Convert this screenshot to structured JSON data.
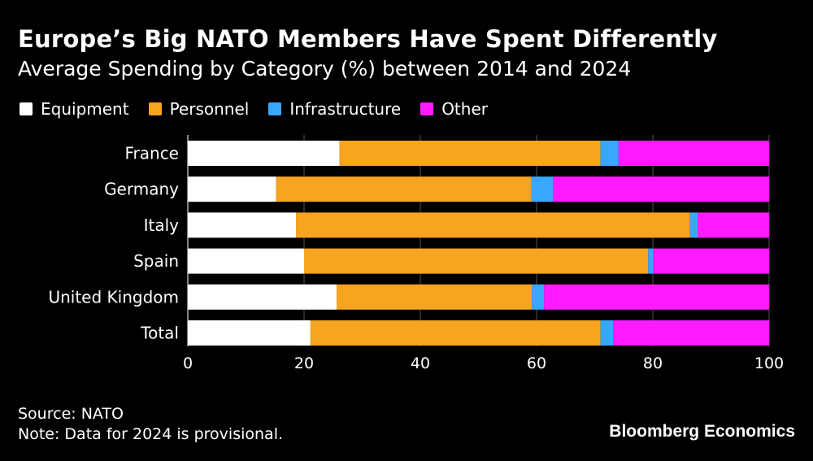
{
  "title": "Europe’s Big NATO Members Have Spent Differently",
  "subtitle": "Average Spending by Category (%) between 2014 and 2024",
  "legend": [
    {
      "label": "Equipment",
      "color": "#ffffff"
    },
    {
      "label": "Personnel",
      "color": "#f7a421"
    },
    {
      "label": "Infrastructure",
      "color": "#3aa7ff"
    },
    {
      "label": "Other",
      "color": "#ff1aff"
    }
  ],
  "footer": {
    "source": "Source: NATO",
    "note": "Note: Data for 2024 is provisional."
  },
  "brand": "Bloomberg Economics",
  "chart_data": {
    "type": "bar",
    "orientation": "horizontal",
    "stacked": true,
    "categories": [
      "France",
      "Germany",
      "Italy",
      "Spain",
      "United Kingdom",
      "Total"
    ],
    "series": [
      {
        "name": "Equipment",
        "color": "#ffffff",
        "values": [
          26.1,
          15.2,
          18.6,
          20.0,
          25.6,
          21.1
        ]
      },
      {
        "name": "Personnel",
        "color": "#f7a421",
        "values": [
          44.9,
          43.9,
          67.8,
          59.2,
          33.6,
          49.9
        ]
      },
      {
        "name": "Infrastructure",
        "color": "#3aa7ff",
        "values": [
          3.1,
          3.7,
          1.3,
          0.9,
          2.1,
          2.2
        ]
      },
      {
        "name": "Other",
        "color": "#ff1aff",
        "values": [
          25.9,
          37.2,
          12.3,
          19.9,
          38.7,
          26.8
        ]
      }
    ],
    "xlim": [
      0,
      100
    ],
    "xticks": [
      "0",
      "20",
      "40",
      "60",
      "80",
      "100"
    ],
    "xlabel": "",
    "ylabel": "",
    "grid": "vertical",
    "legend_position": "top-left"
  }
}
